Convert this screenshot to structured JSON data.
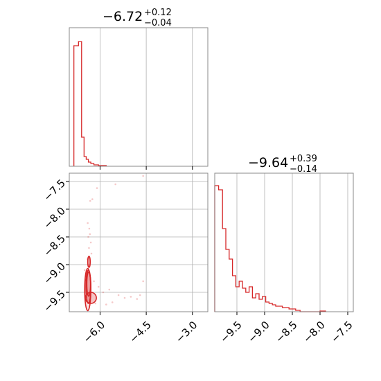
{
  "chart_data": [
    {
      "type": "histogram",
      "panel": "top-left",
      "title": {
        "median": "−6.72",
        "plus": "+0.12",
        "minus": "−0.04"
      },
      "xlim": [
        -7.0,
        -2.5
      ],
      "xticks": [
        -6.0,
        -4.5,
        -3.0
      ],
      "show_ticklabels": false,
      "color": "#d62728",
      "grid": true,
      "bins": [
        {
          "x0": -6.85,
          "x1": -6.7,
          "h": 0.87
        },
        {
          "x0": -6.7,
          "x1": -6.6,
          "h": 0.9
        },
        {
          "x0": -6.6,
          "x1": -6.52,
          "h": 0.21
        },
        {
          "x0": -6.52,
          "x1": -6.45,
          "h": 0.07
        },
        {
          "x0": -6.45,
          "x1": -6.38,
          "h": 0.05
        },
        {
          "x0": -6.38,
          "x1": -6.3,
          "h": 0.03
        },
        {
          "x0": -6.3,
          "x1": -6.2,
          "h": 0.02
        },
        {
          "x0": -6.2,
          "x1": -6.05,
          "h": 0.01
        },
        {
          "x0": -6.05,
          "x1": -5.8,
          "h": 0.005
        }
      ]
    },
    {
      "type": "histogram",
      "panel": "bottom-right",
      "title": {
        "median": "−9.64",
        "plus": "+0.39",
        "minus": "−0.14"
      },
      "xlim": [
        -9.9,
        -7.4
      ],
      "xticks": [
        -9.5,
        -9.0,
        -8.5,
        -8.0,
        -7.5
      ],
      "xtick_labels": [
        "−9.5",
        "−9.0",
        "−8.5",
        "−8.0",
        "−7.5"
      ],
      "color": "#d62728",
      "grid": true,
      "bins": [
        {
          "x0": -9.9,
          "x1": -9.83,
          "h": 0.91
        },
        {
          "x0": -9.83,
          "x1": -9.76,
          "h": 0.88
        },
        {
          "x0": -9.76,
          "x1": -9.7,
          "h": 0.6
        },
        {
          "x0": -9.7,
          "x1": -9.64,
          "h": 0.45
        },
        {
          "x0": -9.64,
          "x1": -9.58,
          "h": 0.38
        },
        {
          "x0": -9.58,
          "x1": -9.52,
          "h": 0.26
        },
        {
          "x0": -9.52,
          "x1": -9.46,
          "h": 0.18
        },
        {
          "x0": -9.46,
          "x1": -9.4,
          "h": 0.22
        },
        {
          "x0": -9.4,
          "x1": -9.34,
          "h": 0.17
        },
        {
          "x0": -9.34,
          "x1": -9.28,
          "h": 0.14
        },
        {
          "x0": -9.28,
          "x1": -9.22,
          "h": 0.18
        },
        {
          "x0": -9.22,
          "x1": -9.16,
          "h": 0.1
        },
        {
          "x0": -9.16,
          "x1": -9.1,
          "h": 0.13
        },
        {
          "x0": -9.1,
          "x1": -9.04,
          "h": 0.09
        },
        {
          "x0": -9.04,
          "x1": -8.98,
          "h": 0.11
        },
        {
          "x0": -8.98,
          "x1": -8.92,
          "h": 0.07
        },
        {
          "x0": -8.92,
          "x1": -8.86,
          "h": 0.06
        },
        {
          "x0": -8.86,
          "x1": -8.8,
          "h": 0.05
        },
        {
          "x0": -8.8,
          "x1": -8.74,
          "h": 0.04
        },
        {
          "x0": -8.74,
          "x1": -8.68,
          "h": 0.04
        },
        {
          "x0": -8.68,
          "x1": -8.62,
          "h": 0.03
        },
        {
          "x0": -8.62,
          "x1": -8.56,
          "h": 0.03
        },
        {
          "x0": -8.56,
          "x1": -8.5,
          "h": 0.02
        },
        {
          "x0": -8.5,
          "x1": -8.44,
          "h": 0.02
        },
        {
          "x0": -8.44,
          "x1": -8.36,
          "h": 0.01
        },
        {
          "x0": -8.36,
          "x1": -8.0,
          "h": 0.0
        },
        {
          "x0": -8.0,
          "x1": -7.9,
          "h": 0.005
        }
      ]
    },
    {
      "type": "scatter",
      "panel": "bottom-left",
      "xlim": [
        -7.0,
        -2.5
      ],
      "ylim": [
        -9.85,
        -7.35
      ],
      "xticks": [
        -6.0,
        -4.5,
        -3.0
      ],
      "xtick_labels": [
        "−6.0",
        "−4.5",
        "−3.0"
      ],
      "yticks": [
        -7.5,
        -8.0,
        -8.5,
        -9.0,
        -9.5
      ],
      "ytick_labels": [
        "−7.5",
        "−8.0",
        "−8.5",
        "−9.0",
        "−9.5"
      ],
      "color": "#d62728",
      "grid": true,
      "points": [
        [
          -6.32,
          -7.85
        ],
        [
          -6.25,
          -7.82
        ],
        [
          -5.5,
          -7.55
        ],
        [
          -6.1,
          -7.62
        ],
        [
          -6.4,
          -8.25
        ],
        [
          -6.38,
          -8.5
        ],
        [
          -6.36,
          -8.7
        ],
        [
          -6.41,
          -8.9
        ],
        [
          -6.3,
          -8.6
        ],
        [
          -6.28,
          -8.8
        ],
        [
          -6.35,
          -8.35
        ],
        [
          -6.33,
          -8.45
        ],
        [
          -6.2,
          -9.3
        ],
        [
          -6.05,
          -9.4
        ],
        [
          -5.9,
          -9.5
        ],
        [
          -5.7,
          -9.45
        ],
        [
          -5.4,
          -9.55
        ],
        [
          -5.2,
          -9.6
        ],
        [
          -5.0,
          -9.58
        ],
        [
          -4.8,
          -9.62
        ],
        [
          -4.6,
          -9.3
        ],
        [
          -4.7,
          -9.55
        ],
        [
          -6.5,
          -9.1
        ],
        [
          -6.45,
          -9.2
        ],
        [
          -4.6,
          -7.4
        ],
        [
          -6.15,
          -9.7
        ],
        [
          -5.8,
          -9.72
        ],
        [
          -5.6,
          -9.68
        ]
      ],
      "contours": [
        {
          "x": -6.4,
          "y": -9.45,
          "rx": 0.1,
          "ry": 0.38
        },
        {
          "x": -6.38,
          "y": -9.4,
          "rx": 0.08,
          "ry": 0.3
        },
        {
          "x": -6.37,
          "y": -9.35,
          "rx": 0.06,
          "ry": 0.22
        },
        {
          "x": -6.3,
          "y": -9.6,
          "rx": 0.18,
          "ry": 0.1
        },
        {
          "x": -6.36,
          "y": -8.95,
          "rx": 0.04,
          "ry": 0.1
        }
      ]
    }
  ]
}
